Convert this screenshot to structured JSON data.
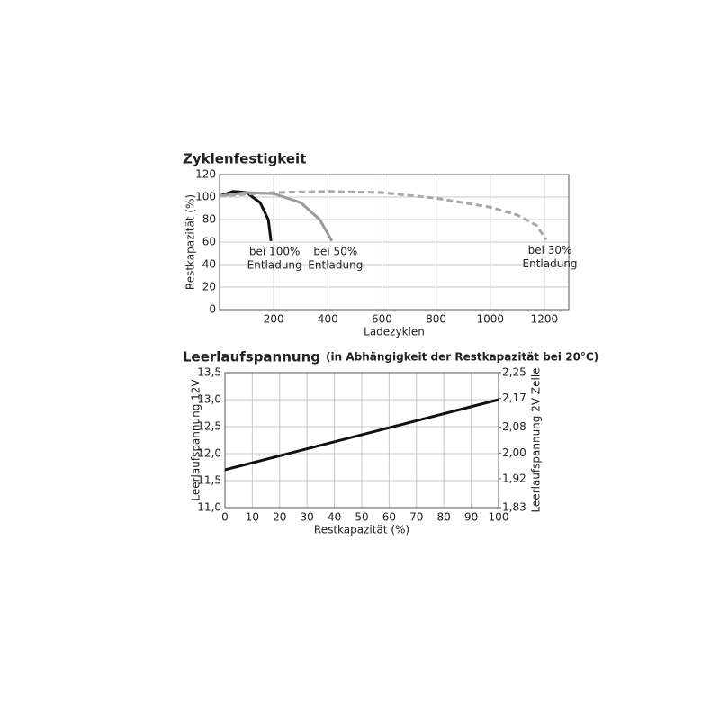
{
  "chart_data": [
    {
      "type": "line",
      "title": "Zyklenfestigkeit",
      "x_label": "Ladezyklen",
      "y_label": "Restkapazität (%)",
      "xlim": [
        0,
        1290
      ],
      "xticks": [
        200,
        400,
        600,
        800,
        1000,
        1200
      ],
      "ylim": [
        0,
        120
      ],
      "yticks": [
        0,
        20,
        40,
        60,
        80,
        100,
        120
      ],
      "grid": true,
      "series": [
        {
          "label": [
            "bei 100%",
            "Entladung"
          ],
          "color": "#111111",
          "dashed": false,
          "x": [
            0,
            50,
            100,
            150,
            180,
            190
          ],
          "values": [
            101,
            105,
            104,
            95,
            80,
            61
          ]
        },
        {
          "label": [
            "bei 50%",
            "Entladung"
          ],
          "color": "#9a9a9a",
          "dashed": false,
          "x": [
            0,
            100,
            200,
            300,
            370,
            415
          ],
          "values": [
            101,
            104,
            103,
            95,
            80,
            61
          ]
        },
        {
          "label": [
            "bei 30%",
            "Entladung"
          ],
          "color": "#a8a8a8",
          "dashed": true,
          "x": [
            0,
            200,
            400,
            600,
            800,
            1000,
            1100,
            1170,
            1207
          ],
          "values": [
            101,
            104,
            105,
            104,
            99,
            91,
            84,
            75,
            62
          ]
        }
      ]
    },
    {
      "type": "line",
      "title": "Leerlaufspannung",
      "subtitle": "(in Abhängigkeit der Restkapazität bei 20°C)",
      "x_label": "Restkapazität (%)",
      "y_label": "Leerlaufspannung 12V",
      "y2_label": "Leerlaufspannung 2V Zelle",
      "xlim": [
        0,
        100
      ],
      "xticks": [
        0,
        10,
        20,
        30,
        40,
        50,
        60,
        70,
        80,
        90,
        100
      ],
      "ylim": [
        11.0,
        13.5
      ],
      "yticks": [
        {
          "value": 11.0,
          "label": "11,0"
        },
        {
          "value": 11.5,
          "label": "11,5"
        },
        {
          "value": 12.0,
          "label": "12,0"
        },
        {
          "value": 12.5,
          "label": "12,5"
        },
        {
          "value": 13.0,
          "label": "13,0"
        },
        {
          "value": 13.5,
          "label": "13,5"
        }
      ],
      "y2lim": [
        1.83,
        2.25
      ],
      "y2ticks": [
        {
          "value": 1.83,
          "label": "1,83"
        },
        {
          "value": 1.92,
          "label": "1,92"
        },
        {
          "value": 2.0,
          "label": "2,00"
        },
        {
          "value": 2.08,
          "label": "2,08"
        },
        {
          "value": 2.17,
          "label": "2,17"
        },
        {
          "value": 2.25,
          "label": "2,25"
        }
      ],
      "grid": true,
      "series": [
        {
          "color": "#111111",
          "dashed": false,
          "x": [
            0,
            100
          ],
          "values": [
            11.7,
            13.0
          ]
        }
      ]
    }
  ]
}
